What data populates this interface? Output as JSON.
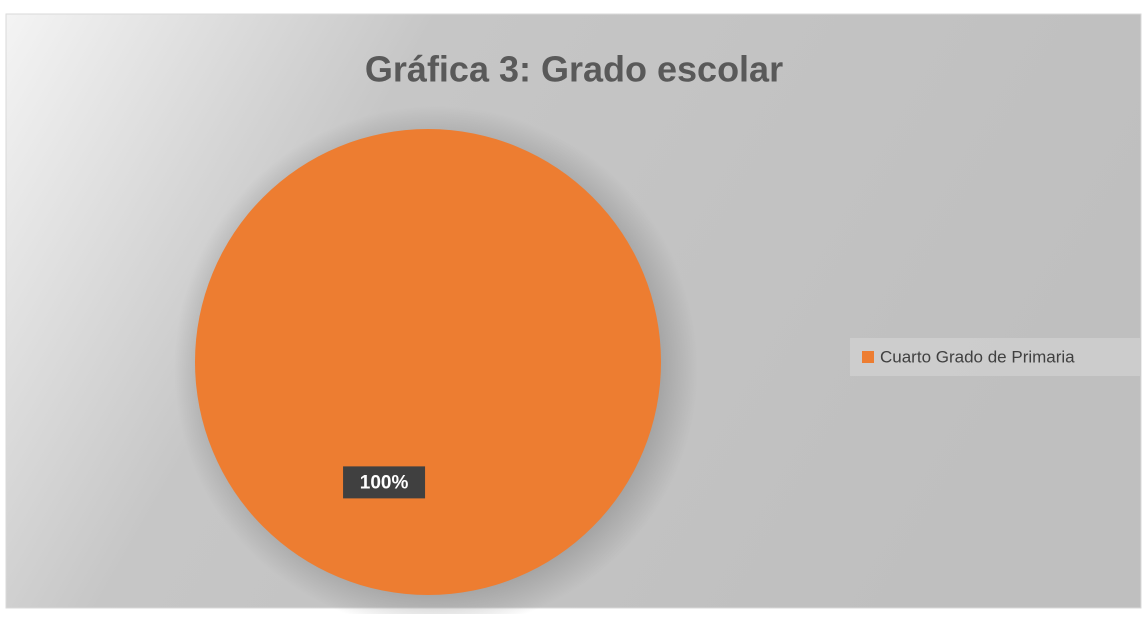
{
  "chart_data": {
    "type": "pie",
    "title": "Gráfica 3: Grado escolar",
    "categories": [
      "Cuarto Grado de Primaria"
    ],
    "values": [
      100
    ],
    "value_labels": [
      "100%"
    ],
    "colors": [
      "#ed7d31"
    ],
    "legend": "right"
  }
}
